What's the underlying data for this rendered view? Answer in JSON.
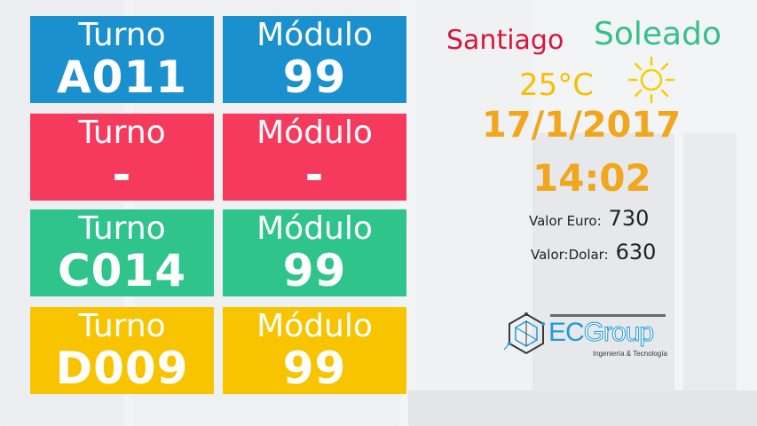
{
  "colors": {
    "blue": "#1a90cf",
    "red": "#f53a5e",
    "green": "#2ec48c",
    "yellow": "#f8c400"
  },
  "queue": [
    {
      "turno_label": "Turno",
      "turno": "A011",
      "modulo_label": "Módulo",
      "modulo": "99"
    },
    {
      "turno_label": "Turno",
      "turno": "-",
      "modulo_label": "Módulo",
      "modulo": "-"
    },
    {
      "turno_label": "Turno",
      "turno": "C014",
      "modulo_label": "Módulo",
      "modulo": "99"
    },
    {
      "turno_label": "Turno",
      "turno": "D009",
      "modulo_label": "Módulo",
      "modulo": "99"
    }
  ],
  "weather": {
    "city": "Santiago",
    "condition": "Soleado",
    "temperature": "25°C",
    "icon": "sun-icon"
  },
  "date": "17/1/2017",
  "time": "14:02",
  "rates": {
    "euro_label": "Valor Euro:",
    "euro_value": "730",
    "dolar_label": "Valor:Dolar:",
    "dolar_value": "630"
  },
  "logo": {
    "brand_ec": "EC",
    "brand_group": "Group",
    "tagline": "Ingeniería & Tecnología"
  }
}
